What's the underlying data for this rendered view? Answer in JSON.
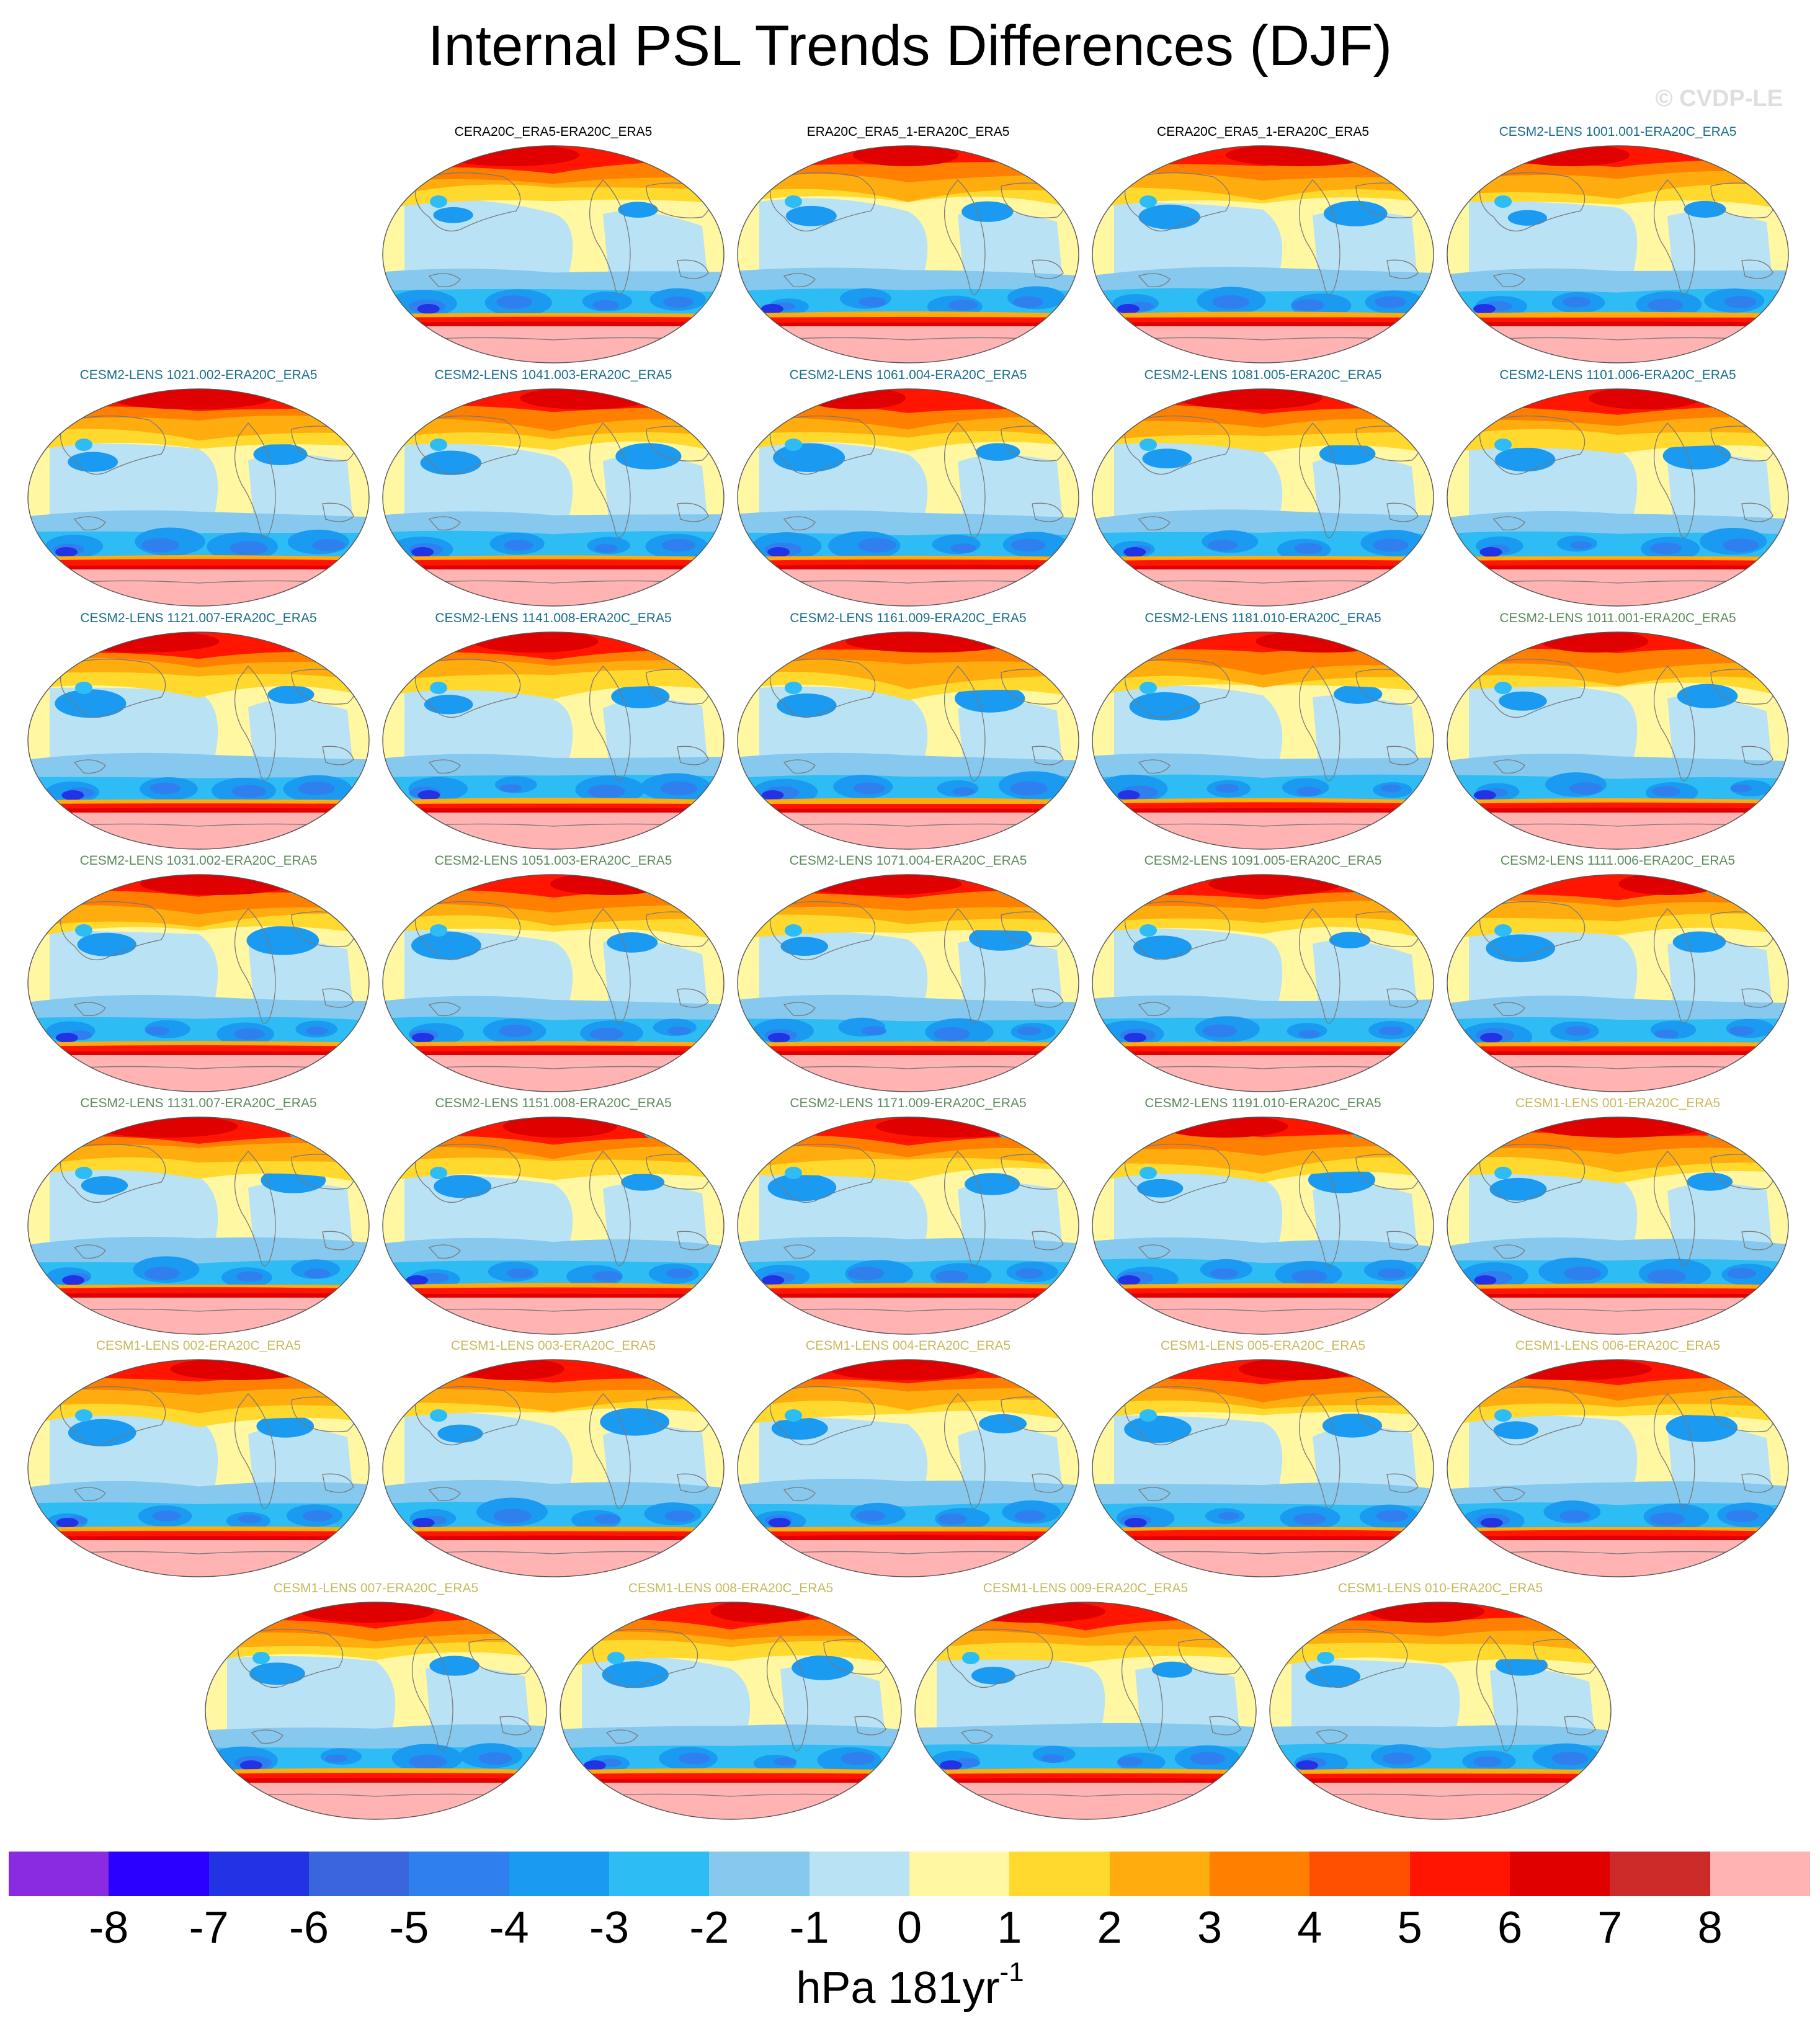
{
  "title": "Internal PSL Trends Differences (DJF)",
  "watermark": "© CVDP-LE",
  "colors": {
    "ref": "#000000",
    "cesm2_smbb": "#1a6e8a",
    "cesm2_cmip6": "#5d8a5d",
    "cesm1": "#c7b95e",
    "coast": "#7a7a7a"
  },
  "panels": [
    {
      "label": "CERA20C_ERA5-ERA20C_ERA5",
      "group": "ref"
    },
    {
      "label": "ERA20C_ERA5_1-ERA20C_ERA5",
      "group": "ref"
    },
    {
      "label": "CERA20C_ERA5_1-ERA20C_ERA5",
      "group": "ref"
    },
    {
      "label": "CESM2-LENS 1001.001-ERA20C_ERA5",
      "group": "cesm2_smbb"
    },
    {
      "label": "CESM2-LENS 1021.002-ERA20C_ERA5",
      "group": "cesm2_smbb"
    },
    {
      "label": "CESM2-LENS 1041.003-ERA20C_ERA5",
      "group": "cesm2_smbb"
    },
    {
      "label": "CESM2-LENS 1061.004-ERA20C_ERA5",
      "group": "cesm2_smbb"
    },
    {
      "label": "CESM2-LENS 1081.005-ERA20C_ERA5",
      "group": "cesm2_smbb"
    },
    {
      "label": "CESM2-LENS 1101.006-ERA20C_ERA5",
      "group": "cesm2_smbb"
    },
    {
      "label": "CESM2-LENS 1121.007-ERA20C_ERA5",
      "group": "cesm2_smbb"
    },
    {
      "label": "CESM2-LENS 1141.008-ERA20C_ERA5",
      "group": "cesm2_smbb"
    },
    {
      "label": "CESM2-LENS 1161.009-ERA20C_ERA5",
      "group": "cesm2_smbb"
    },
    {
      "label": "CESM2-LENS 1181.010-ERA20C_ERA5",
      "group": "cesm2_smbb"
    },
    {
      "label": "CESM2-LENS 1011.001-ERA20C_ERA5",
      "group": "cesm2_cmip6"
    },
    {
      "label": "CESM2-LENS 1031.002-ERA20C_ERA5",
      "group": "cesm2_cmip6"
    },
    {
      "label": "CESM2-LENS 1051.003-ERA20C_ERA5",
      "group": "cesm2_cmip6"
    },
    {
      "label": "CESM2-LENS 1071.004-ERA20C_ERA5",
      "group": "cesm2_cmip6"
    },
    {
      "label": "CESM2-LENS 1091.005-ERA20C_ERA5",
      "group": "cesm2_cmip6"
    },
    {
      "label": "CESM2-LENS 1111.006-ERA20C_ERA5",
      "group": "cesm2_cmip6"
    },
    {
      "label": "CESM2-LENS 1131.007-ERA20C_ERA5",
      "group": "cesm2_cmip6"
    },
    {
      "label": "CESM2-LENS 1151.008-ERA20C_ERA5",
      "group": "cesm2_cmip6"
    },
    {
      "label": "CESM2-LENS 1171.009-ERA20C_ERA5",
      "group": "cesm2_cmip6"
    },
    {
      "label": "CESM2-LENS 1191.010-ERA20C_ERA5",
      "group": "cesm2_cmip6"
    },
    {
      "label": "CESM1-LENS 001-ERA20C_ERA5",
      "group": "cesm1"
    },
    {
      "label": "CESM1-LENS 002-ERA20C_ERA5",
      "group": "cesm1"
    },
    {
      "label": "CESM1-LENS 003-ERA20C_ERA5",
      "group": "cesm1"
    },
    {
      "label": "CESM1-LENS 004-ERA20C_ERA5",
      "group": "cesm1"
    },
    {
      "label": "CESM1-LENS 005-ERA20C_ERA5",
      "group": "cesm1"
    },
    {
      "label": "CESM1-LENS 006-ERA20C_ERA5",
      "group": "cesm1"
    },
    {
      "label": "CESM1-LENS 007-ERA20C_ERA5",
      "group": "cesm1"
    },
    {
      "label": "CESM1-LENS 008-ERA20C_ERA5",
      "group": "cesm1"
    },
    {
      "label": "CESM1-LENS 009-ERA20C_ERA5",
      "group": "cesm1"
    },
    {
      "label": "CESM1-LENS 010-ERA20C_ERA5",
      "group": "cesm1"
    }
  ],
  "chart_data": {
    "type": "heatmap",
    "title": "Internal PSL Trends Differences (DJF)",
    "projection": "Robinson global map",
    "colorbar": {
      "ticks": [
        "-8",
        "-7",
        "-6",
        "-5",
        "-4",
        "-3",
        "-2",
        "-1",
        "0",
        "1",
        "2",
        "3",
        "4",
        "5",
        "6",
        "7",
        "8"
      ],
      "tick_values": [
        -8,
        -7,
        -6,
        -5,
        -4,
        -3,
        -2,
        -1,
        0,
        1,
        2,
        3,
        4,
        5,
        6,
        7,
        8
      ],
      "colors": [
        "#8a2be2",
        "#2b00ff",
        "#2233e6",
        "#3a66dd",
        "#2f80ee",
        "#1a9af0",
        "#2ebcf5",
        "#86c8ee",
        "#b9e2f5",
        "#fff7a1",
        "#ffd92e",
        "#ffad0e",
        "#ff7f00",
        "#ff4f00",
        "#ff1500",
        "#e00000",
        "#cd2a2a",
        "#ffb3b3"
      ],
      "units_prefix": "hPa 181yr",
      "units_exponent": "-1"
    },
    "layout": "7 rows x 5 columns, last row 4 centered, first row 4 right-aligned",
    "common_pattern": "positive trend differences over Northern Hemisphere high latitudes and Southern Ocean belt; negative over subtropical/mid-latitude oceans"
  }
}
